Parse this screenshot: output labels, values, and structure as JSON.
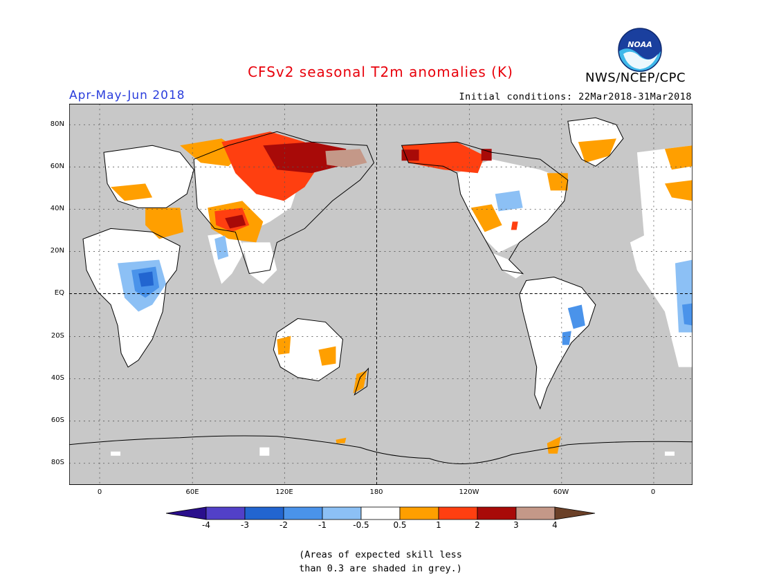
{
  "header": {
    "title": "CFSv2 seasonal T2m anomalies (K)",
    "agency": "NWS/NCEP/CPC",
    "season": "Apr-May-Jun 2018",
    "initial_conditions": "Initial conditions: 22Mar2018-31Mar2018",
    "logo_text": "NOAA"
  },
  "axes": {
    "y_ticks": [
      "80N",
      "60N",
      "40N",
      "20N",
      "EQ",
      "20S",
      "40S",
      "60S",
      "80S"
    ],
    "x_ticks": [
      "0",
      "60E",
      "120E",
      "180",
      "120W",
      "60W",
      "0"
    ]
  },
  "colorbar": {
    "labels": [
      "-4",
      "-3",
      "-2",
      "-1",
      "-0.5",
      "0.5",
      "1",
      "2",
      "3",
      "4"
    ],
    "colors": [
      "#2a0f8c",
      "#5240c8",
      "#2265d0",
      "#4a93ea",
      "#8cc0f5",
      "#ffffff",
      "#ff9f00",
      "#ff3f10",
      "#a80a08",
      "#c49888",
      "#6b4028"
    ]
  },
  "colors": {
    "title": "#e8000b",
    "season": "#2a3ddc",
    "skill_grey": "#c8c8c8",
    "land_nearzero": "#ffffff"
  },
  "footnote": {
    "line1": "(Areas of expected skill less",
    "line2": "than 0.3 are shaded in grey.)"
  }
}
